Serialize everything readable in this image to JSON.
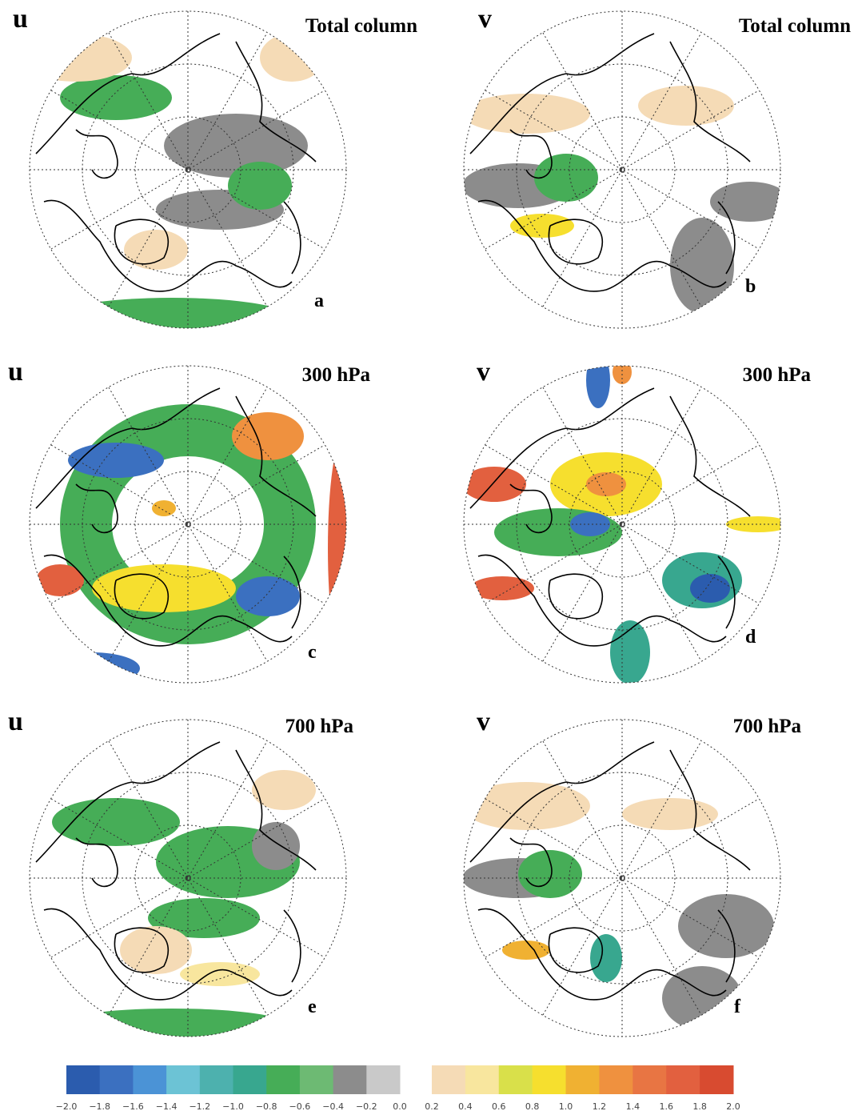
{
  "panels": [
    {
      "variable": "u",
      "title": "Total column",
      "label": "a"
    },
    {
      "variable": "v",
      "title": "Total column",
      "label": "b"
    },
    {
      "variable": "u",
      "title": "300 hPa",
      "label": "c"
    },
    {
      "variable": "v",
      "title": "300 hPa",
      "label": "d"
    },
    {
      "variable": "u",
      "title": "700 hPa",
      "label": "e"
    },
    {
      "variable": "v",
      "title": "700 hPa",
      "label": "f"
    }
  ],
  "colorbar": {
    "negative": {
      "colors": [
        "#2b5cae",
        "#3b70c0",
        "#4b93d6",
        "#6cc3d5",
        "#4db1ae",
        "#38a78f",
        "#46ad57",
        "#6dba73",
        "#8c8c8c",
        "#c9c9c9"
      ],
      "ticks": [
        {
          "value": -2.0,
          "label": "−2.0"
        },
        {
          "value": -1.8,
          "label": "−1.8"
        },
        {
          "value": -1.6,
          "label": "−1.6"
        },
        {
          "value": -1.4,
          "label": "−1.4"
        },
        {
          "value": -1.2,
          "label": "−1.2"
        },
        {
          "value": -1.0,
          "label": "−1.0"
        },
        {
          "value": -0.8,
          "label": "−0.8"
        },
        {
          "value": -0.6,
          "label": "−0.6"
        },
        {
          "value": -0.4,
          "label": "−0.4"
        },
        {
          "value": -0.2,
          "label": "−0.2"
        },
        {
          "value": 0.0,
          "label": "0.0"
        }
      ]
    },
    "positive": {
      "colors": [
        "#f5dbb6",
        "#f8e69e",
        "#d9e04a",
        "#f6df2e",
        "#f0b132",
        "#ef913f",
        "#e87543",
        "#e2603f",
        "#d84b30"
      ],
      "ticks": [
        {
          "value": 0.2,
          "label": "0.2"
        },
        {
          "value": 0.4,
          "label": "0.4"
        },
        {
          "value": 0.6,
          "label": "0.6"
        },
        {
          "value": 0.8,
          "label": "0.8"
        },
        {
          "value": 1.0,
          "label": "1.0"
        },
        {
          "value": 1.2,
          "label": "1.2"
        },
        {
          "value": 1.4,
          "label": "1.4"
        },
        {
          "value": 1.6,
          "label": "1.6"
        },
        {
          "value": 1.8,
          "label": "1.8"
        },
        {
          "value": 2.0,
          "label": "2.0"
        }
      ]
    }
  }
}
